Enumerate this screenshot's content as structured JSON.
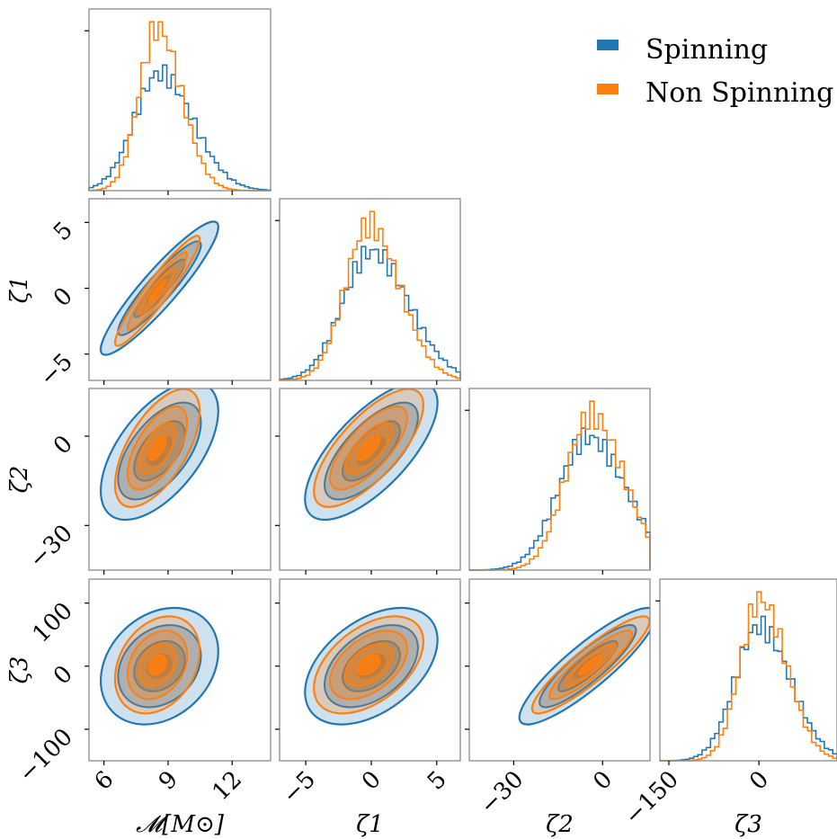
{
  "chart_data": {
    "type": "corner",
    "parameters": [
      "chirp_mass",
      "zeta1",
      "zeta2",
      "zeta3"
    ],
    "axis_labels": {
      "chirp_mass": "𝓜[M⊙]",
      "zeta1": "ζ1",
      "zeta2": "ζ2",
      "zeta3": "ζ3"
    },
    "ranges": {
      "chirp_mass": [
        5.3,
        13.8
      ],
      "zeta1": [
        -7.0,
        6.8
      ],
      "zeta2": [
        -45,
        16
      ],
      "zeta3": [
        -150,
        138
      ]
    },
    "diag_ranges": {
      "chirp_mass": [
        5.3,
        13.8
      ],
      "zeta1": [
        -7.0,
        6.8
      ],
      "zeta2": [
        -45,
        16
      ],
      "zeta3": [
        -165,
        130
      ]
    },
    "ticks": {
      "chirp_mass": [
        6,
        9,
        12
      ],
      "zeta1": [
        -5,
        0,
        5
      ],
      "zeta2": [
        -30,
        0
      ],
      "zeta3": [
        -100,
        0,
        100
      ],
      "zeta3_diag": [
        -150,
        0
      ]
    },
    "tick_labels": {
      "chirp_mass": [
        "6",
        "9",
        "12"
      ],
      "zeta1": [
        "−5",
        "0",
        "5"
      ],
      "zeta2": [
        "−30",
        "0"
      ],
      "zeta3": [
        "−100",
        "0",
        "100"
      ],
      "zeta3_diag": [
        "−150",
        "0"
      ]
    },
    "series": [
      {
        "name": "Spinning",
        "color": "#1f77b4",
        "means": {
          "chirp_mass": 8.6,
          "zeta1": 0.0,
          "zeta2": -5,
          "zeta3": 0
        },
        "sds": {
          "chirp_mass": 1.25,
          "zeta1": 2.3,
          "zeta2": 10.5,
          "zeta3": 42
        },
        "corr": {
          "chirp_mass|zeta1": 0.92,
          "chirp_mass|zeta2": 0.58,
          "chirp_mass|zeta3": 0.25,
          "zeta1|zeta2": 0.7,
          "zeta1|zeta3": 0.45,
          "zeta2|zeta3": 0.88
        }
      },
      {
        "name": "Non Spinning",
        "color": "#ff7f0e",
        "means": {
          "chirp_mass": 8.5,
          "zeta1": -0.2,
          "zeta2": -4,
          "zeta3": 2
        },
        "sds": {
          "chirp_mass": 0.9,
          "zeta1": 1.9,
          "zeta2": 9,
          "zeta3": 35
        },
        "corr": {
          "chirp_mass|zeta1": 0.94,
          "chirp_mass|zeta2": 0.62,
          "chirp_mass|zeta3": 0.28,
          "zeta1|zeta2": 0.73,
          "zeta1|zeta3": 0.48,
          "zeta2|zeta3": 0.9
        }
      }
    ],
    "legend": {
      "placement": "top-right",
      "entries": [
        "Spinning",
        "Non Spinning"
      ]
    }
  }
}
